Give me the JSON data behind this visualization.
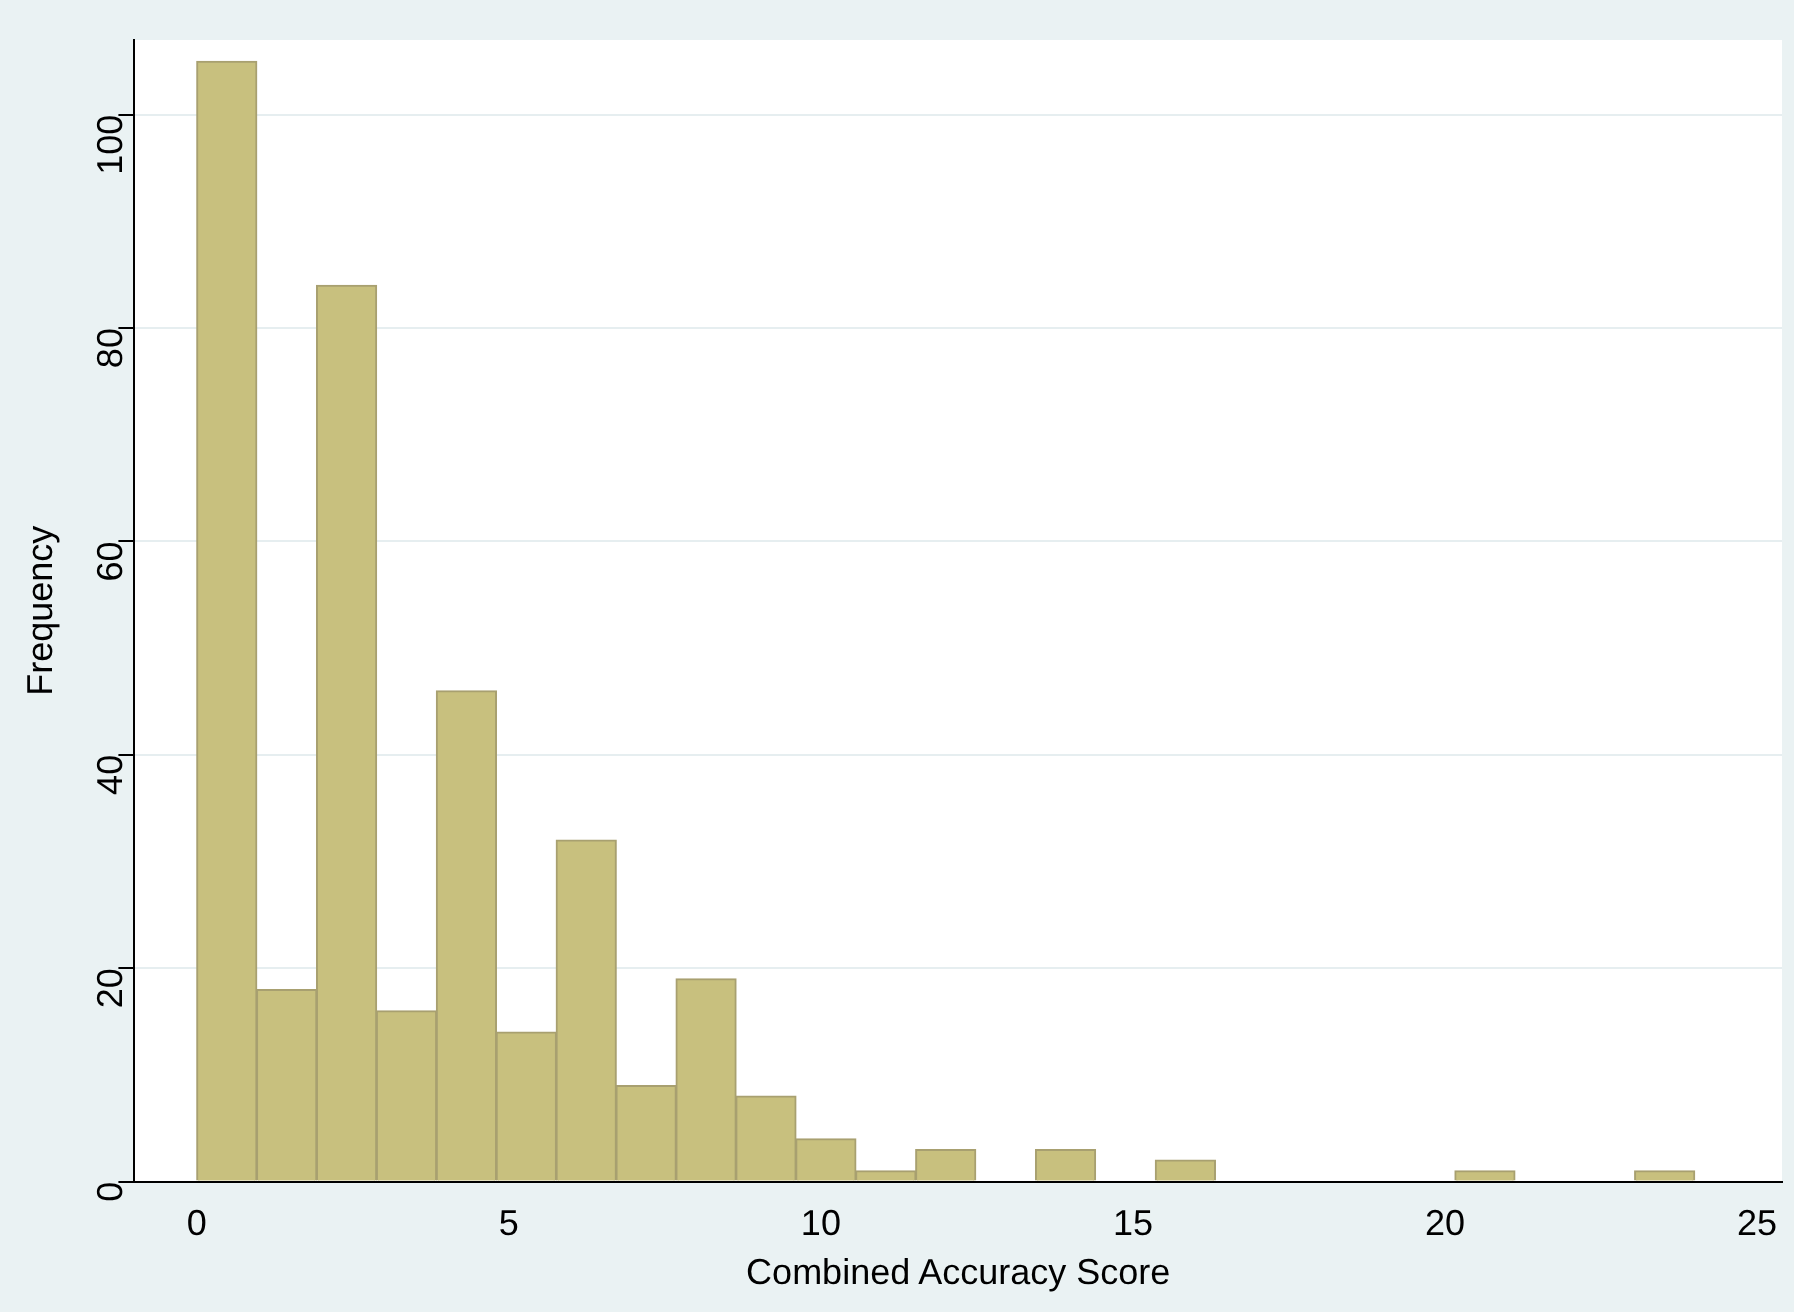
{
  "chart_data": {
    "type": "histogram",
    "xlabel": "Combined Accuracy Score",
    "ylabel": "Frequency",
    "bins": [
      0,
      0.96,
      1.92,
      2.88,
      3.84,
      4.8,
      5.76,
      6.72,
      7.68,
      8.64,
      9.6,
      10.56,
      11.52,
      12.48,
      13.44,
      14.4,
      15.36,
      16.32,
      17.28,
      18.24,
      19.2,
      20.16,
      21.12,
      22.08,
      23.04,
      24
    ],
    "values": [
      105,
      18,
      84,
      16,
      46,
      14,
      32,
      9,
      19,
      8,
      4,
      1,
      3,
      0,
      3,
      0,
      2,
      0,
      0,
      0,
      0,
      1,
      0,
      0,
      1
    ],
    "color": "#c8c07e",
    "xlim": [
      -1,
      25.4
    ],
    "xticks": [
      0,
      5,
      10,
      15,
      20,
      25
    ],
    "ylim": [
      0,
      107
    ],
    "yticks": [
      0,
      20,
      40,
      60,
      80,
      100
    ],
    "grid": "y",
    "legend": false
  }
}
